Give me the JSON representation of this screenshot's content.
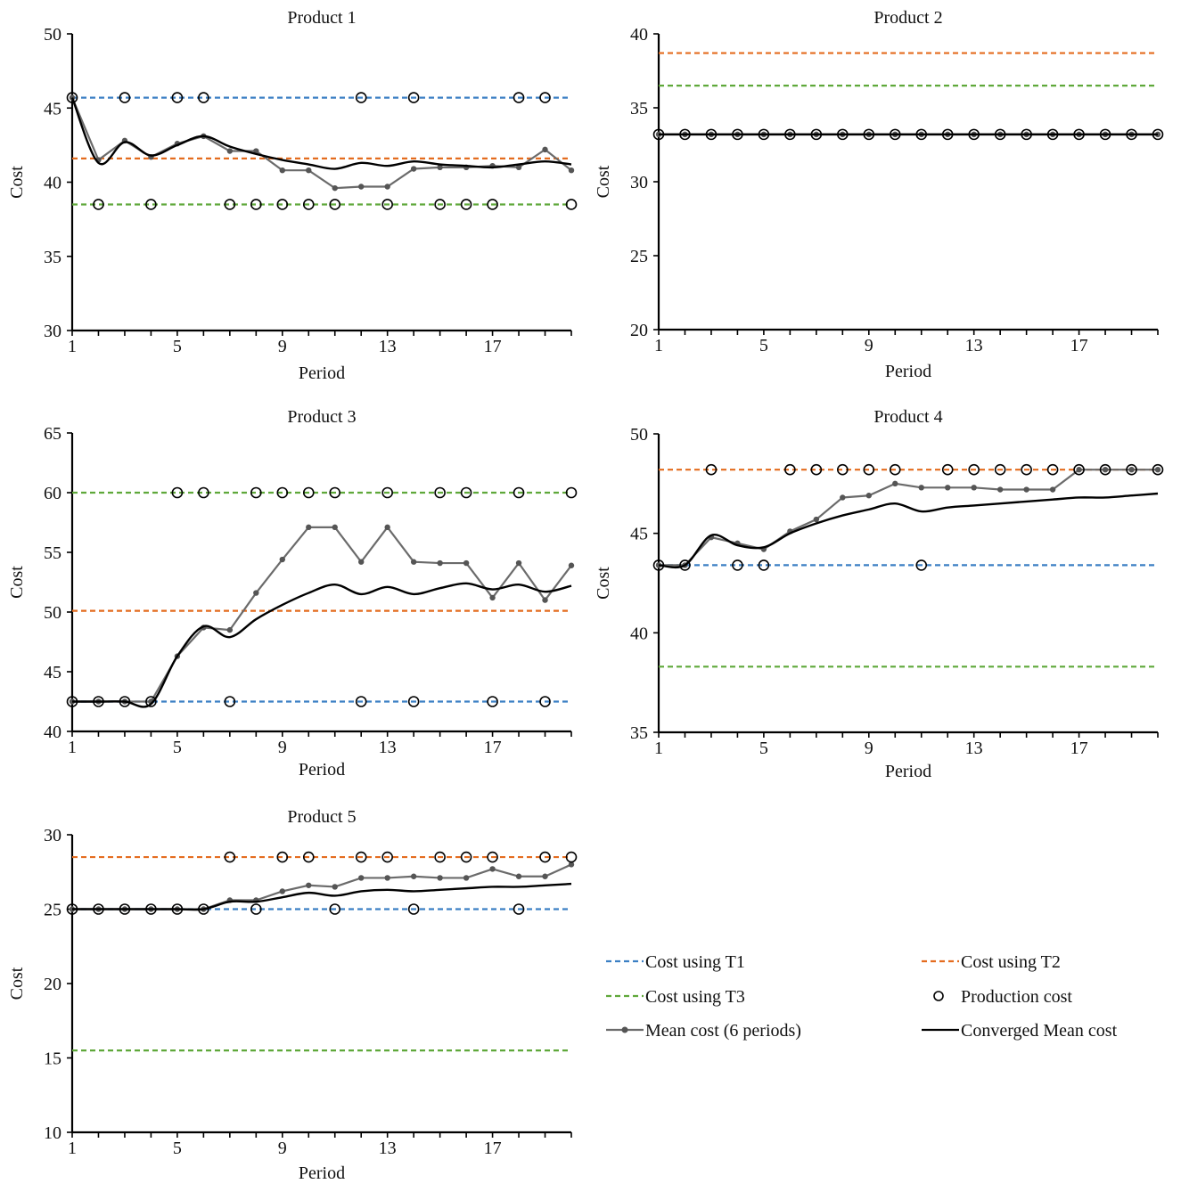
{
  "chart_data": [
    {
      "type": "line",
      "title": "Product 1",
      "xlabel": "Period",
      "ylabel": "Cost",
      "ylim": [
        30,
        50
      ],
      "yticks": [
        30,
        35,
        40,
        45,
        50
      ],
      "xticks": [
        1,
        5,
        9,
        13,
        17
      ],
      "x": [
        1,
        2,
        3,
        4,
        5,
        6,
        7,
        8,
        9,
        10,
        11,
        12,
        13,
        14,
        15,
        16,
        17,
        18,
        19,
        20
      ],
      "t1": 45.7,
      "t2": 41.6,
      "t3": 38.5,
      "production": [
        45.7,
        38.5,
        45.7,
        38.5,
        45.7,
        45.7,
        38.5,
        38.5,
        38.5,
        38.5,
        38.5,
        45.7,
        38.5,
        45.7,
        38.5,
        38.5,
        38.5,
        45.7,
        45.7,
        38.5
      ],
      "mean6": [
        45.7,
        41.5,
        42.8,
        41.7,
        42.6,
        43.1,
        42.1,
        42.1,
        40.8,
        40.8,
        39.6,
        39.7,
        39.7,
        40.9,
        41.0,
        41.0,
        41.1,
        41.0,
        42.2,
        40.8
      ],
      "converged": [
        45.7,
        41.3,
        42.7,
        41.8,
        42.5,
        43.1,
        42.4,
        41.9,
        41.5,
        41.2,
        40.9,
        41.3,
        41.1,
        41.4,
        41.2,
        41.1,
        41.0,
        41.2,
        41.4,
        41.2
      ]
    },
    {
      "type": "line",
      "title": "Product 2",
      "xlabel": "Period",
      "ylabel": "Cost",
      "ylim": [
        20,
        40
      ],
      "yticks": [
        20,
        25,
        30,
        35,
        40
      ],
      "xticks": [
        1,
        5,
        9,
        13,
        17
      ],
      "x": [
        1,
        2,
        3,
        4,
        5,
        6,
        7,
        8,
        9,
        10,
        11,
        12,
        13,
        14,
        15,
        16,
        17,
        18,
        19,
        20
      ],
      "t1": null,
      "t2": 38.7,
      "t3": 36.5,
      "production": [
        33.2,
        33.2,
        33.2,
        33.2,
        33.2,
        33.2,
        33.2,
        33.2,
        33.2,
        33.2,
        33.2,
        33.2,
        33.2,
        33.2,
        33.2,
        33.2,
        33.2,
        33.2,
        33.2,
        33.2
      ],
      "mean6": [
        33.2,
        33.2,
        33.2,
        33.2,
        33.2,
        33.2,
        33.2,
        33.2,
        33.2,
        33.2,
        33.2,
        33.2,
        33.2,
        33.2,
        33.2,
        33.2,
        33.2,
        33.2,
        33.2,
        33.2
      ],
      "converged": [
        33.2,
        33.2,
        33.2,
        33.2,
        33.2,
        33.2,
        33.2,
        33.2,
        33.2,
        33.2,
        33.2,
        33.2,
        33.2,
        33.2,
        33.2,
        33.2,
        33.2,
        33.2,
        33.2,
        33.2
      ]
    },
    {
      "type": "line",
      "title": "Product 3",
      "xlabel": "Period",
      "ylabel": "Cost",
      "ylim": [
        40,
        65
      ],
      "yticks": [
        40,
        45,
        50,
        55,
        60,
        65
      ],
      "xticks": [
        1,
        5,
        9,
        13,
        17
      ],
      "x": [
        1,
        2,
        3,
        4,
        5,
        6,
        7,
        8,
        9,
        10,
        11,
        12,
        13,
        14,
        15,
        16,
        17,
        18,
        19,
        20
      ],
      "t1": 42.5,
      "t2": 50.1,
      "t3": 60.0,
      "production": [
        42.5,
        42.5,
        42.5,
        42.5,
        60.0,
        60.0,
        42.5,
        60.0,
        60.0,
        60.0,
        60.0,
        42.5,
        60.0,
        42.5,
        60.0,
        60.0,
        42.5,
        60.0,
        42.5,
        60.0
      ],
      "mean6": [
        42.5,
        42.5,
        42.5,
        42.5,
        46.3,
        48.7,
        48.5,
        51.6,
        54.4,
        57.1,
        57.1,
        54.2,
        57.1,
        54.2,
        54.1,
        54.1,
        51.2,
        54.1,
        51.0,
        53.9
      ],
      "converged": [
        42.5,
        42.5,
        42.5,
        42.3,
        46.3,
        48.8,
        47.9,
        49.4,
        50.6,
        51.6,
        52.3,
        51.5,
        52.1,
        51.5,
        52.0,
        52.4,
        51.9,
        52.3,
        51.7,
        52.2
      ]
    },
    {
      "type": "line",
      "title": "Product 4",
      "xlabel": "Period",
      "ylabel": "Cost",
      "ylim": [
        35,
        50
      ],
      "yticks": [
        35,
        40,
        45,
        50
      ],
      "xticks": [
        1,
        5,
        9,
        13,
        17
      ],
      "x": [
        1,
        2,
        3,
        4,
        5,
        6,
        7,
        8,
        9,
        10,
        11,
        12,
        13,
        14,
        15,
        16,
        17,
        18,
        19,
        20
      ],
      "t1": 43.4,
      "t2": 48.2,
      "t3": 38.3,
      "production": [
        43.4,
        43.4,
        48.2,
        43.4,
        43.4,
        48.2,
        48.2,
        48.2,
        48.2,
        48.2,
        43.4,
        48.2,
        48.2,
        48.2,
        48.2,
        48.2,
        48.2,
        48.2,
        48.2,
        48.2
      ],
      "mean6": [
        43.4,
        43.4,
        44.8,
        44.5,
        44.2,
        45.1,
        45.7,
        46.8,
        46.9,
        47.5,
        47.3,
        47.3,
        47.3,
        47.2,
        47.2,
        47.2,
        48.2,
        48.2,
        48.2,
        48.2
      ],
      "converged": [
        43.4,
        43.4,
        44.9,
        44.4,
        44.3,
        45.0,
        45.5,
        45.9,
        46.2,
        46.5,
        46.1,
        46.3,
        46.4,
        46.5,
        46.6,
        46.7,
        46.8,
        46.8,
        46.9,
        47.0
      ]
    },
    {
      "type": "line",
      "title": "Product 5",
      "xlabel": "Period",
      "ylabel": "Cost",
      "ylim": [
        10,
        30
      ],
      "yticks": [
        10,
        15,
        20,
        25,
        30
      ],
      "xticks": [
        1,
        5,
        9,
        13,
        17
      ],
      "x": [
        1,
        2,
        3,
        4,
        5,
        6,
        7,
        8,
        9,
        10,
        11,
        12,
        13,
        14,
        15,
        16,
        17,
        18,
        19,
        20
      ],
      "t1": 25.0,
      "t2": 28.5,
      "t3": 15.5,
      "production": [
        25.0,
        25.0,
        25.0,
        25.0,
        25.0,
        25.0,
        28.5,
        25.0,
        28.5,
        28.5,
        25.0,
        28.5,
        28.5,
        25.0,
        28.5,
        28.5,
        28.5,
        25.0,
        28.5,
        28.5
      ],
      "mean6": [
        25.0,
        25.0,
        25.0,
        25.0,
        25.0,
        25.0,
        25.6,
        25.6,
        26.2,
        26.6,
        26.5,
        27.1,
        27.1,
        27.2,
        27.1,
        27.1,
        27.7,
        27.2,
        27.2,
        28.0
      ],
      "converged": [
        25.0,
        25.0,
        25.0,
        25.0,
        25.0,
        25.0,
        25.5,
        25.5,
        25.8,
        26.1,
        25.9,
        26.2,
        26.3,
        26.2,
        26.3,
        26.4,
        26.5,
        26.5,
        26.6,
        26.7
      ]
    }
  ],
  "legend": [
    {
      "key": "t1",
      "label": "Cost using T1",
      "color": "#3B7FC4",
      "style": "dashed"
    },
    {
      "key": "t2",
      "label": "Cost using T2",
      "color": "#E46C1F",
      "style": "dashed"
    },
    {
      "key": "t3",
      "label": "Cost using T3",
      "color": "#5FA83A",
      "style": "dashed"
    },
    {
      "key": "production",
      "label": "Production cost",
      "color": "#000000",
      "style": "circle"
    },
    {
      "key": "mean6",
      "label": "Mean cost (6 periods)",
      "color": "#6b6b6b",
      "style": "line-marker"
    },
    {
      "key": "converged",
      "label": "Converged Mean cost",
      "color": "#000000",
      "style": "line"
    }
  ]
}
